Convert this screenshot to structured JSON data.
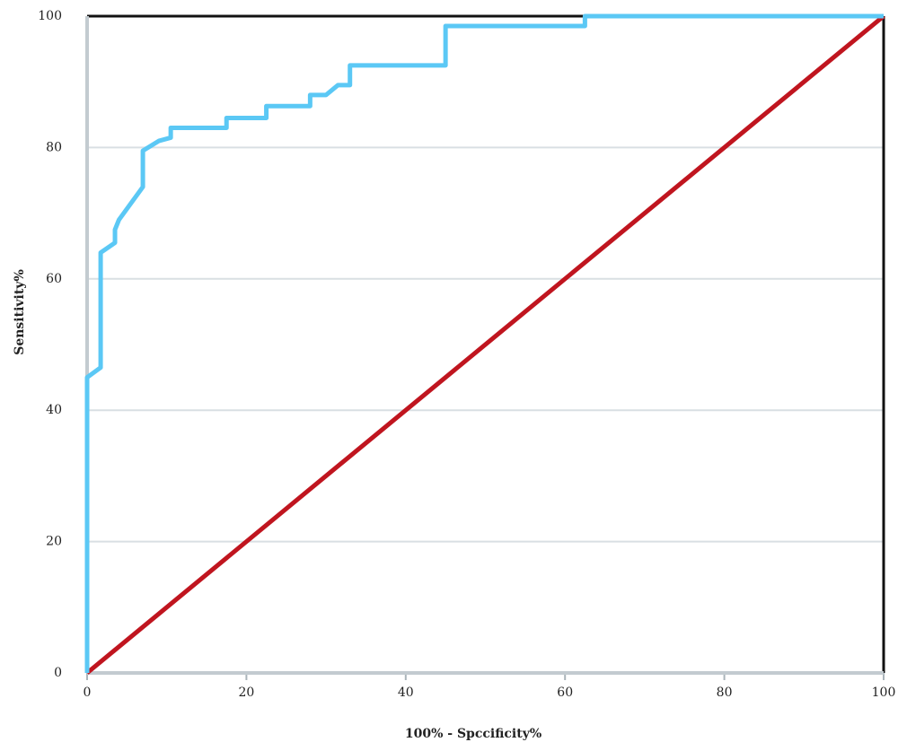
{
  "chart_data": {
    "type": "line",
    "xlabel": "100% - Spccificity%",
    "ylabel": "Sensitivity%",
    "xlim": [
      0,
      100
    ],
    "ylim": [
      0,
      100
    ],
    "xticks": [
      0,
      20,
      40,
      60,
      80,
      100
    ],
    "yticks": [
      0,
      20,
      40,
      60,
      80,
      100
    ],
    "grid": true,
    "series": [
      {
        "color": "#5bc8f5",
        "x": [
          0,
          0,
          1.7,
          1.7,
          3.5,
          3.5,
          4,
          7,
          7,
          9,
          10.5,
          10.5,
          17.5,
          17.5,
          22.5,
          22.5,
          28,
          28,
          30,
          31.5,
          33,
          33,
          45,
          45,
          62.5,
          62.5,
          100
        ],
        "values": [
          0,
          45,
          46.5,
          64,
          65.5,
          67.5,
          69,
          74,
          79.5,
          81,
          81.5,
          83,
          83,
          84.5,
          84.5,
          86.3,
          86.3,
          88,
          88,
          89.5,
          89.5,
          92.5,
          92.5,
          98.5,
          98.5,
          100,
          100
        ]
      },
      {
        "color": "#c0151f",
        "x": [
          0,
          100
        ],
        "values": [
          0,
          100
        ]
      }
    ]
  }
}
